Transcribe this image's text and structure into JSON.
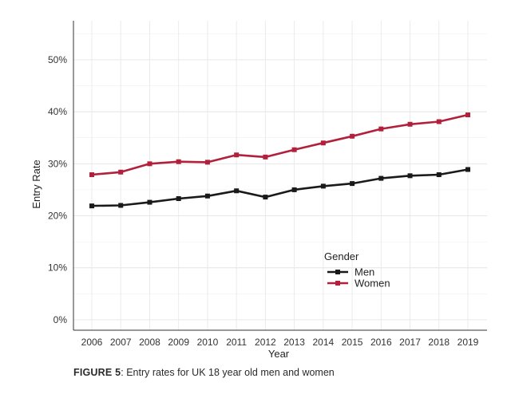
{
  "chart_data": {
    "type": "line",
    "title": "",
    "xlabel": "Year",
    "ylabel": "Entry Rate",
    "categories": [
      "2006",
      "2007",
      "2008",
      "2009",
      "2010",
      "2011",
      "2012",
      "2013",
      "2014",
      "2015",
      "2016",
      "2017",
      "2018",
      "2019"
    ],
    "series": [
      {
        "name": "Men",
        "color": "#1a1a1a",
        "values": [
          0.219,
          0.22,
          0.226,
          0.233,
          0.238,
          0.248,
          0.236,
          0.25,
          0.257,
          0.262,
          0.272,
          0.277,
          0.279,
          0.289
        ]
      },
      {
        "name": "Women",
        "color": "#b2213b",
        "values": [
          0.279,
          0.284,
          0.3,
          0.304,
          0.303,
          0.317,
          0.313,
          0.327,
          0.34,
          0.353,
          0.367,
          0.376,
          0.381,
          0.394
        ]
      }
    ],
    "ylim": [
      -0.02,
      0.575
    ],
    "yticks": [
      0,
      0.1,
      0.2,
      0.3,
      0.4,
      0.5
    ],
    "ytick_labels": [
      "0%",
      "10%",
      "20%",
      "30%",
      "40%",
      "50%"
    ],
    "grid": true,
    "legend": {
      "title": "Gender",
      "placement": "bottom-right"
    }
  },
  "caption": {
    "figure_label": "FIGURE 5",
    "text": ": Entry rates for UK 18 year old men and women"
  }
}
